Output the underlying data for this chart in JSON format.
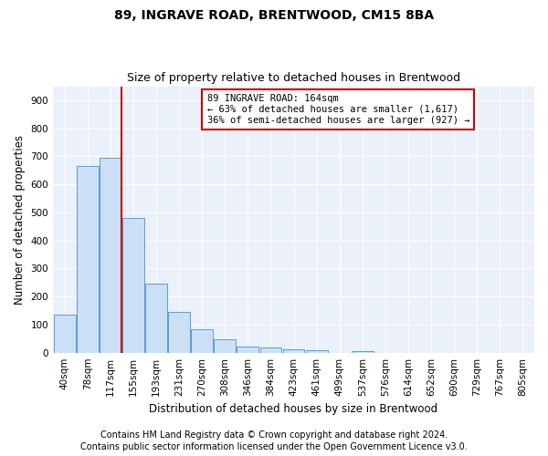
{
  "title1": "89, INGRAVE ROAD, BRENTWOOD, CM15 8BA",
  "title2": "Size of property relative to detached houses in Brentwood",
  "xlabel": "Distribution of detached houses by size in Brentwood",
  "ylabel": "Number of detached properties",
  "bin_labels": [
    "40sqm",
    "78sqm",
    "117sqm",
    "155sqm",
    "193sqm",
    "231sqm",
    "270sqm",
    "308sqm",
    "346sqm",
    "384sqm",
    "423sqm",
    "461sqm",
    "499sqm",
    "537sqm",
    "576sqm",
    "614sqm",
    "652sqm",
    "690sqm",
    "729sqm",
    "767sqm",
    "805sqm"
  ],
  "bar_heights": [
    135,
    665,
    695,
    480,
    245,
    145,
    83,
    47,
    22,
    18,
    12,
    8,
    0,
    7,
    0,
    0,
    0,
    0,
    0,
    0,
    0
  ],
  "bar_color": "#cce0f5",
  "bar_edge_color": "#5b9bd5",
  "vline_color": "#cc0000",
  "vline_x_index": 3,
  "annotation_line1": "89 INGRAVE ROAD: 164sqm",
  "annotation_line2": "← 63% of detached houses are smaller (1,617)",
  "annotation_line3": "36% of semi-detached houses are larger (927) →",
  "annotation_box_color": "#ffffff",
  "annotation_box_edge": "#cc0000",
  "ylim": [
    0,
    950
  ],
  "yticks": [
    0,
    100,
    200,
    300,
    400,
    500,
    600,
    700,
    800,
    900
  ],
  "footer1": "Contains HM Land Registry data © Crown copyright and database right 2024.",
  "footer2": "Contains public sector information licensed under the Open Government Licence v3.0.",
  "bg_color": "#ffffff",
  "plot_bg_color": "#eaf1fb",
  "grid_color": "#ffffff",
  "title1_fontsize": 10,
  "title2_fontsize": 9,
  "xlabel_fontsize": 8.5,
  "ylabel_fontsize": 8.5,
  "tick_fontsize": 7.5,
  "annotation_fontsize": 7.5,
  "footer_fontsize": 7
}
